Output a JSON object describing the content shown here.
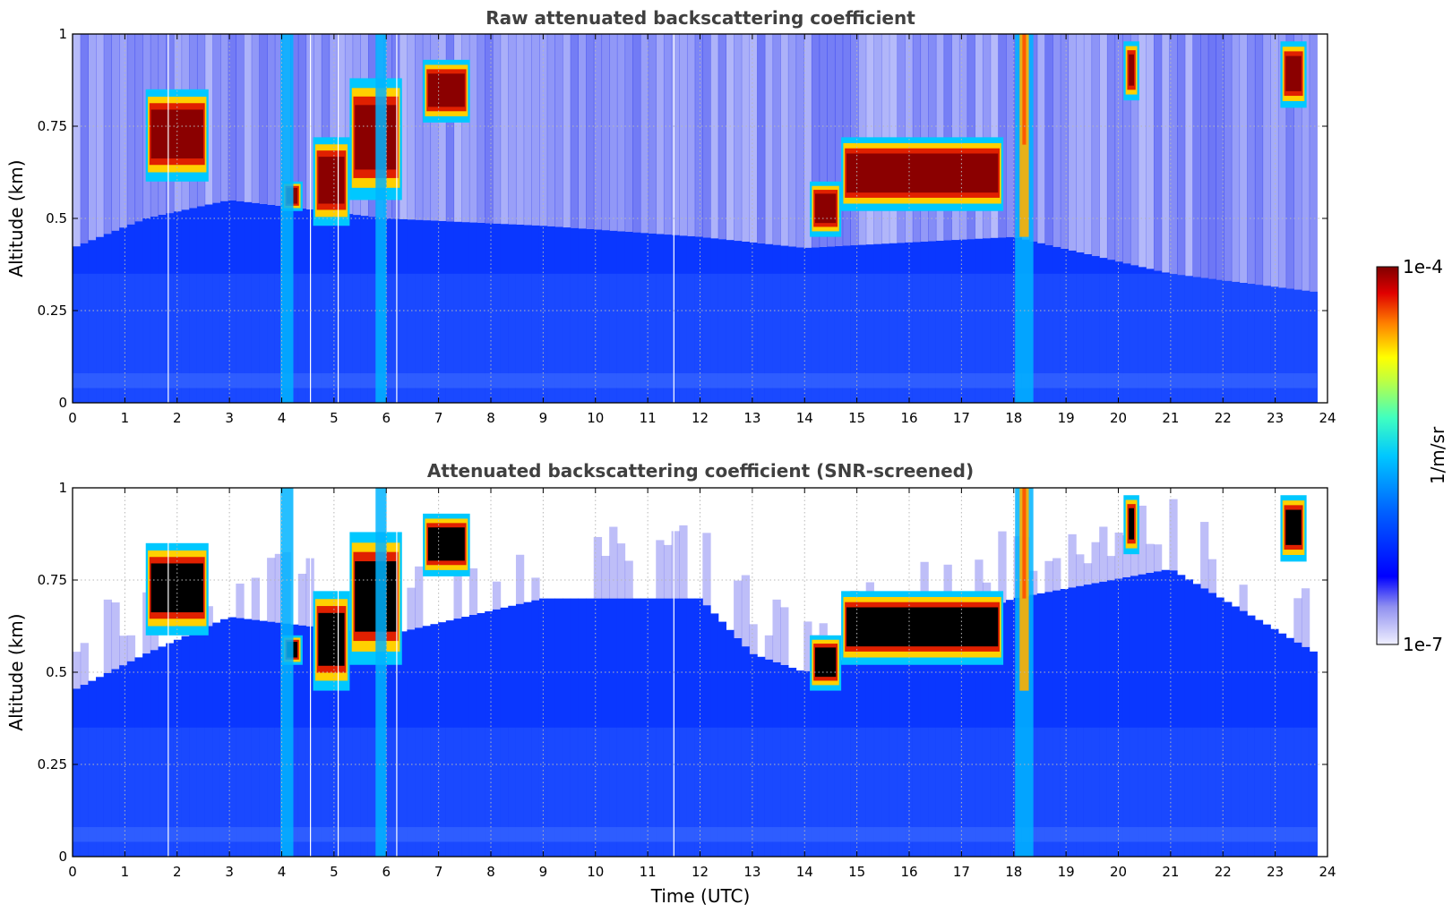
{
  "chart_data": [
    {
      "type": "heatmap",
      "title": "Raw attenuated backscattering coefficient",
      "xlabel": "",
      "ylabel": "Altitude (km)",
      "xlim": [
        0,
        24
      ],
      "ylim": [
        0,
        1
      ],
      "xticks": [
        "0",
        "1",
        "2",
        "3",
        "4",
        "5",
        "6",
        "7",
        "8",
        "9",
        "10",
        "11",
        "12",
        "13",
        "14",
        "15",
        "16",
        "17",
        "18",
        "19",
        "20",
        "21",
        "22",
        "23",
        "24"
      ],
      "yticks": [
        "0",
        "0.25",
        "0.5",
        "0.75",
        "1"
      ],
      "ytick_values": [
        0,
        0.25,
        0.5,
        0.75,
        1
      ],
      "grid": true,
      "screened": false,
      "clouds": [
        {
          "t0": 1.4,
          "t1": 2.6,
          "base": 0.6,
          "top": 0.85
        },
        {
          "t0": 4.0,
          "t1": 4.4,
          "base": 0.52,
          "top": 0.6
        },
        {
          "t0": 4.6,
          "t1": 5.3,
          "base": 0.48,
          "top": 0.72
        },
        {
          "t0": 5.3,
          "t1": 6.3,
          "base": 0.55,
          "top": 0.88
        },
        {
          "t0": 6.7,
          "t1": 7.6,
          "base": 0.76,
          "top": 0.93
        },
        {
          "t0": 14.1,
          "t1": 14.7,
          "base": 0.45,
          "top": 0.6
        },
        {
          "t0": 14.7,
          "t1": 17.8,
          "base": 0.52,
          "top": 0.72
        },
        {
          "t0": 20.1,
          "t1": 20.4,
          "base": 0.82,
          "top": 0.98
        },
        {
          "t0": 23.1,
          "t1": 23.6,
          "base": 0.8,
          "top": 0.98
        }
      ],
      "rain_columns": [
        {
          "time": 4.1,
          "intensity": 0.7
        },
        {
          "time": 5.9,
          "intensity": 0.6
        },
        {
          "time": 18.2,
          "intensity": 1.0
        }
      ],
      "boundary_layer_top": [
        {
          "time": 0,
          "top": 0.42
        },
        {
          "time": 1.4,
          "top": 0.5
        },
        {
          "time": 3,
          "top": 0.55
        },
        {
          "time": 6,
          "top": 0.5
        },
        {
          "time": 9,
          "top": 0.48
        },
        {
          "time": 12,
          "top": 0.45
        },
        {
          "time": 14,
          "top": 0.42
        },
        {
          "time": 18,
          "top": 0.45
        },
        {
          "time": 21,
          "top": 0.35
        },
        {
          "time": 23.8,
          "top": 0.3
        }
      ],
      "gap_times": [
        1.83,
        4.55,
        5.08,
        6.2,
        11.5
      ]
    },
    {
      "type": "heatmap",
      "title": "Attenuated backscattering coefficient (SNR-screened)",
      "xlabel": "Time (UTC)",
      "ylabel": "Altitude (km)",
      "xlim": [
        0,
        24
      ],
      "ylim": [
        0,
        1
      ],
      "xticks": [
        "0",
        "1",
        "2",
        "3",
        "4",
        "5",
        "6",
        "7",
        "8",
        "9",
        "10",
        "11",
        "12",
        "13",
        "14",
        "15",
        "16",
        "17",
        "18",
        "19",
        "20",
        "21",
        "22",
        "23",
        "24"
      ],
      "yticks": [
        "0",
        "0.25",
        "0.5",
        "0.75",
        "1"
      ],
      "ytick_values": [
        0,
        0.25,
        0.5,
        0.75,
        1
      ],
      "grid": true,
      "screened": true,
      "clouds": [
        {
          "t0": 1.4,
          "t1": 2.6,
          "base": 0.6,
          "top": 0.85
        },
        {
          "t0": 4.0,
          "t1": 4.4,
          "base": 0.52,
          "top": 0.6
        },
        {
          "t0": 4.6,
          "t1": 5.3,
          "base": 0.45,
          "top": 0.72
        },
        {
          "t0": 5.3,
          "t1": 6.3,
          "base": 0.52,
          "top": 0.88
        },
        {
          "t0": 6.7,
          "t1": 7.6,
          "base": 0.76,
          "top": 0.93
        },
        {
          "t0": 14.1,
          "t1": 14.7,
          "base": 0.45,
          "top": 0.6
        },
        {
          "t0": 14.7,
          "t1": 17.8,
          "base": 0.52,
          "top": 0.72
        },
        {
          "t0": 20.1,
          "t1": 20.4,
          "base": 0.82,
          "top": 0.98
        },
        {
          "t0": 23.1,
          "t1": 23.6,
          "base": 0.8,
          "top": 0.98
        }
      ],
      "rain_columns": [
        {
          "time": 4.1,
          "intensity": 0.7
        },
        {
          "time": 5.9,
          "intensity": 0.6
        },
        {
          "time": 18.2,
          "intensity": 1.0
        }
      ],
      "boundary_layer_top": [
        {
          "time": 0,
          "top": 0.45
        },
        {
          "time": 1.4,
          "top": 0.55
        },
        {
          "time": 3,
          "top": 0.65
        },
        {
          "time": 6,
          "top": 0.6
        },
        {
          "time": 9,
          "top": 0.7
        },
        {
          "time": 12,
          "top": 0.7
        },
        {
          "time": 13,
          "top": 0.55
        },
        {
          "time": 14,
          "top": 0.5
        },
        {
          "time": 18,
          "top": 0.7
        },
        {
          "time": 21,
          "top": 0.78
        },
        {
          "time": 23.8,
          "top": 0.55
        }
      ],
      "gap_times": [
        1.83,
        4.55,
        5.08,
        6.2,
        11.5
      ]
    }
  ],
  "colorbar": {
    "max_label": "1e-4",
    "min_label": "1e-7",
    "unit_label": "1/m/sr",
    "colors": [
      "#f0f0ff",
      "#c0c0f0",
      "#8080ee",
      "#0000ff",
      "#0040ff",
      "#0090ff",
      "#00d8ff",
      "#40ffc0",
      "#a0ff60",
      "#ffff00",
      "#ffb000",
      "#ff5000",
      "#e00000",
      "#800000"
    ]
  }
}
